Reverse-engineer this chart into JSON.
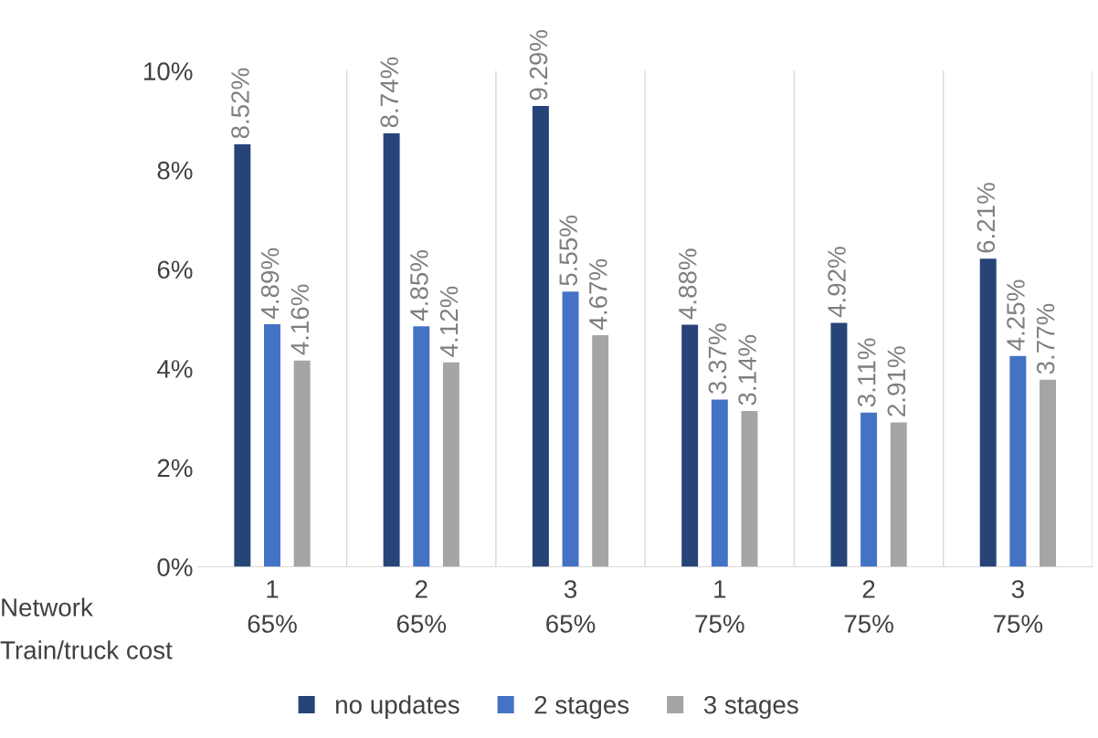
{
  "chart_data": {
    "type": "bar",
    "categories": [
      "1\n65%",
      "2\n65%",
      "3\n65%",
      "1\n75%",
      "2\n75%",
      "3\n75%"
    ],
    "annotations": [
      "Network",
      "Train/truck cost"
    ],
    "series": [
      {
        "name": "no updates",
        "color": "#264478",
        "values": [
          8.52,
          8.74,
          9.29,
          4.88,
          4.92,
          6.21
        ],
        "value_labels": [
          "8.52%",
          "8.74%",
          "9.29%",
          "4.88%",
          "4.92%",
          "6.21%"
        ]
      },
      {
        "name": "2 stages",
        "color": "#4472c4",
        "values": [
          4.89,
          4.85,
          5.55,
          3.37,
          3.11,
          4.25
        ],
        "value_labels": [
          "4.89%",
          "4.85%",
          "5.55%",
          "3.37%",
          "3.11%",
          "4.25%"
        ]
      },
      {
        "name": "3 stages",
        "color": "#a5a5a5",
        "values": [
          4.16,
          4.12,
          4.67,
          3.14,
          2.91,
          3.77
        ],
        "value_labels": [
          "4.16%",
          "4.12%",
          "4.67%",
          "3.14%",
          "2.91%",
          "3.77%"
        ]
      }
    ],
    "ylim": [
      0,
      10
    ],
    "yticks": [
      {
        "value": 0,
        "label": "0%"
      },
      {
        "value": 2,
        "label": "2%"
      },
      {
        "value": 4,
        "label": "4%"
      },
      {
        "value": 6,
        "label": "6%"
      },
      {
        "value": 8,
        "label": "8%"
      },
      {
        "value": 10,
        "label": "10%"
      }
    ],
    "grid": "x",
    "legend": "bottom"
  }
}
